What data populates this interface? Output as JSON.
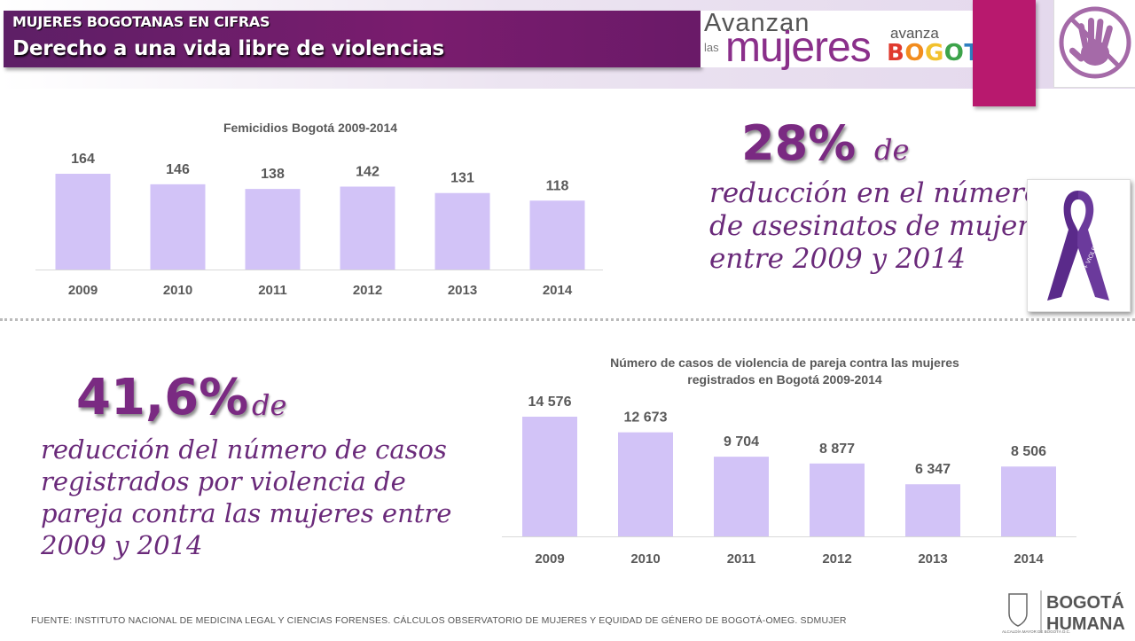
{
  "header": {
    "kicker": "MUJERES BOGOTANAS EN CIFRAS",
    "title": "Derecho a una vida libre de violencias"
  },
  "logo": {
    "avanzan": "Avanzan",
    "las": "las",
    "mujeres": "mujeres",
    "avanza": "avanza",
    "bogota": "BOGOTÁ",
    "bogota_colors": [
      "#e03a2f",
      "#f28c1e",
      "#f2c12e",
      "#3ca34a",
      "#2f7fc1",
      "#8a3ea0"
    ]
  },
  "colors": {
    "bar": "#d2c3f7",
    "accent": "#7a2a82",
    "header": "#6a1a68",
    "magenta": "#b8196e",
    "ribbon": "#5a2a8a"
  },
  "chart_data": [
    {
      "type": "bar",
      "title": "Femicidios Bogotá 2009-2014",
      "categories": [
        "2009",
        "2010",
        "2011",
        "2012",
        "2013",
        "2014"
      ],
      "values": [
        164,
        146,
        138,
        142,
        131,
        118
      ],
      "value_labels": [
        "164",
        "146",
        "138",
        "142",
        "131",
        "118"
      ],
      "xlabel": "",
      "ylabel": "",
      "grid": false
    },
    {
      "type": "bar",
      "title": "Número de casos de violencia de pareja contra las mujeres registrados en Bogotá 2009-2014",
      "title_lines": [
        "Número de casos de violencia de pareja contra las mujeres",
        "registrados en Bogotá 2009-2014"
      ],
      "categories": [
        "2009",
        "2010",
        "2011",
        "2012",
        "2013",
        "2014"
      ],
      "values": [
        14576,
        12673,
        9704,
        8877,
        6347,
        8506
      ],
      "value_labels": [
        "14 576",
        "12 673",
        "9 704",
        "8 877",
        "6 347",
        "8 506"
      ],
      "xlabel": "",
      "ylabel": "",
      "grid": false
    }
  ],
  "stat1": {
    "value": "28%",
    "de": "de",
    "lines": [
      "reducción en el número",
      "de asesinatos de mujeres",
      "entre 2009 y 2014"
    ]
  },
  "stat2": {
    "value": "41,6%",
    "de": "de",
    "lines": [
      "reducción del número de casos",
      "registrados por violencia de",
      "pareja contra las mujeres entre",
      "2009 y 2014"
    ]
  },
  "ribbon_text": "NO + VIOLENCIA DE GÉNERO",
  "footer": {
    "source": "FUENTE: INSTITUTO NACIONAL DE MEDICINA LEGAL Y CIENCIAS FORENSES. CÁLCULOS OBSERVATORIO DE MUJERES Y EQUIDAD DE GÉNERO DE BOGOTÁ-OMEG. SDMUJER",
    "alcaldia": "ALCALDÍA MAYOR DE BOGOTÁ D.C.",
    "bogota": "BOGOTÁ",
    "humana": "HUMANA"
  }
}
